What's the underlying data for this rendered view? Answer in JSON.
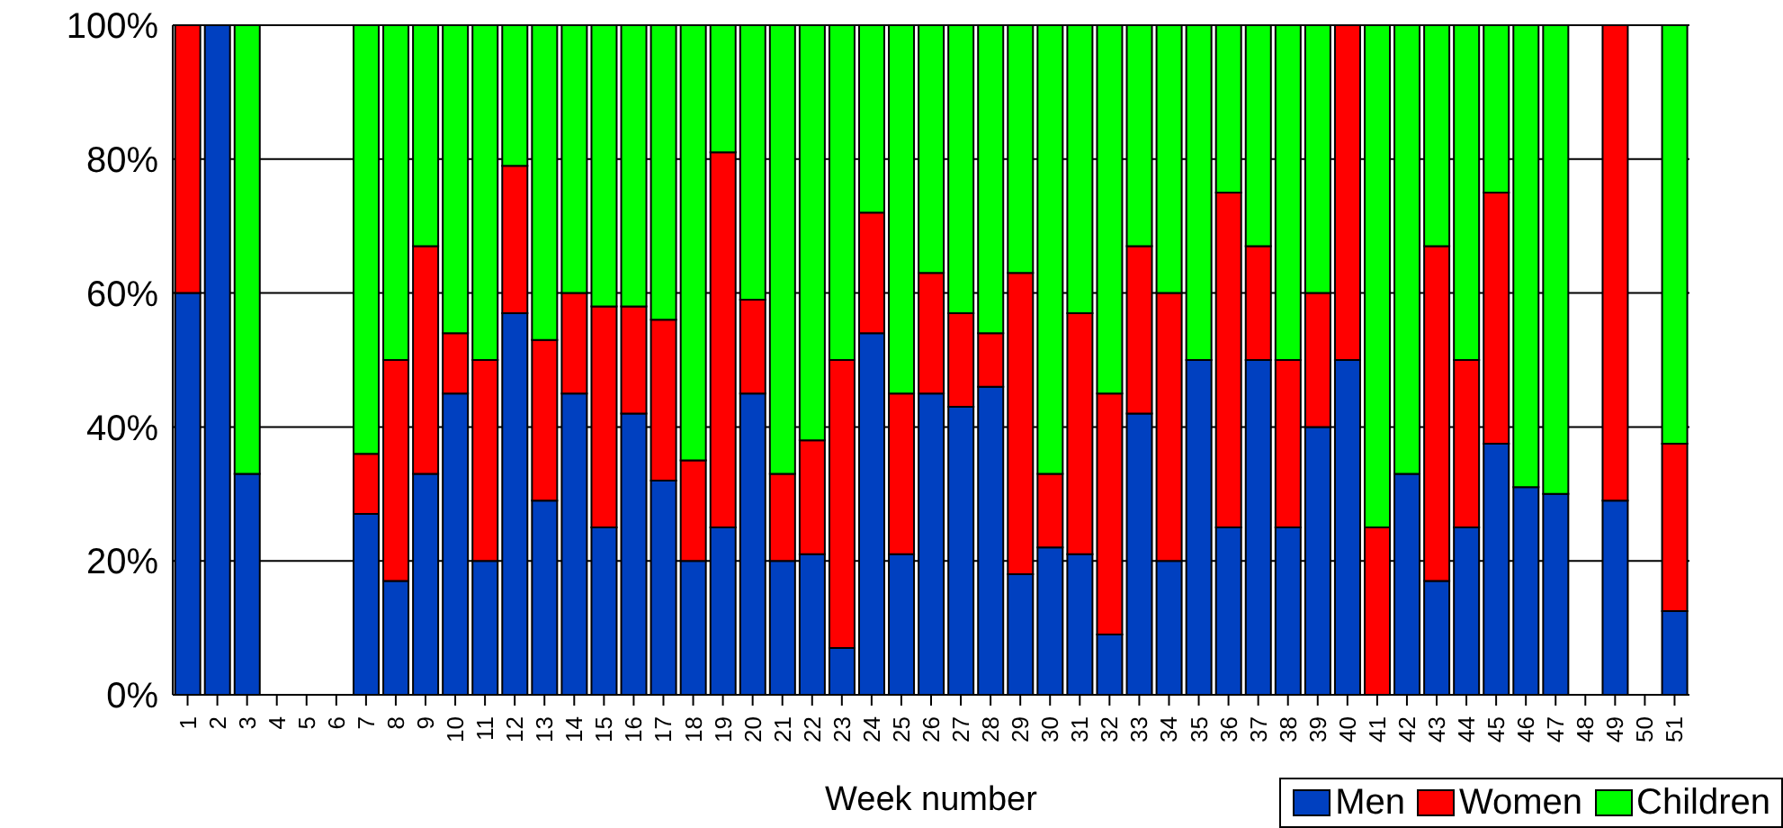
{
  "chart_data": {
    "type": "bar",
    "stacked": true,
    "xlabel": "Week number",
    "categories": [
      "1",
      "2",
      "3",
      "4",
      "5",
      "6",
      "7",
      "8",
      "9",
      "10",
      "11",
      "12",
      "13",
      "14",
      "15",
      "16",
      "17",
      "18",
      "19",
      "20",
      "21",
      "22",
      "23",
      "24",
      "25",
      "26",
      "27",
      "28",
      "29",
      "30",
      "31",
      "32",
      "33",
      "34",
      "35",
      "36",
      "37",
      "38",
      "39",
      "40",
      "41",
      "42",
      "43",
      "44",
      "45",
      "46",
      "47",
      "48",
      "49",
      "50",
      "51"
    ],
    "series": [
      {
        "name": "Men",
        "color": "#0040c0",
        "values": [
          60,
          100,
          33,
          0,
          0,
          0,
          27,
          17,
          33,
          45,
          20,
          57,
          29,
          45,
          25,
          42,
          32,
          20,
          25,
          45,
          20,
          21,
          7,
          54,
          21,
          45,
          43,
          46,
          18,
          22,
          21,
          9,
          42,
          20,
          50,
          25,
          50,
          25,
          40,
          50,
          0,
          33,
          17,
          25,
          37.5,
          31,
          30,
          0,
          29,
          0,
          12.5
        ]
      },
      {
        "name": "Women",
        "color": "#ff0000",
        "values": [
          40,
          0,
          0,
          0,
          0,
          0,
          9,
          33,
          34,
          9,
          30,
          22,
          24,
          15,
          33,
          16,
          24,
          15,
          56,
          14,
          13,
          17,
          43,
          18,
          24,
          18,
          14,
          8,
          45,
          11,
          36,
          36,
          25,
          40,
          0,
          50,
          17,
          25,
          20,
          50,
          25,
          0,
          50,
          25,
          37.5,
          0,
          0,
          0,
          71,
          0,
          25
        ]
      },
      {
        "name": "Children",
        "color": "#00ff00",
        "values": [
          0,
          0,
          67,
          0,
          0,
          0,
          64,
          50,
          33,
          46,
          50,
          21,
          47,
          40,
          42,
          42,
          44,
          65,
          19,
          41,
          67,
          62,
          50,
          28,
          55,
          37,
          43,
          46,
          37,
          67,
          43,
          55,
          33,
          40,
          50,
          25,
          33,
          50,
          40,
          0,
          75,
          67,
          33,
          50,
          25,
          69,
          70,
          0,
          0,
          0,
          62.5
        ]
      }
    ],
    "ylim": [
      0,
      100
    ],
    "yticks": [
      {
        "value": 0,
        "label": "0%"
      },
      {
        "value": 20,
        "label": "20%"
      },
      {
        "value": 40,
        "label": "40%"
      },
      {
        "value": 60,
        "label": "60%"
      },
      {
        "value": 80,
        "label": "80%"
      },
      {
        "value": 100,
        "label": "100%"
      }
    ],
    "grid": "y",
    "legend": "bottom right"
  }
}
